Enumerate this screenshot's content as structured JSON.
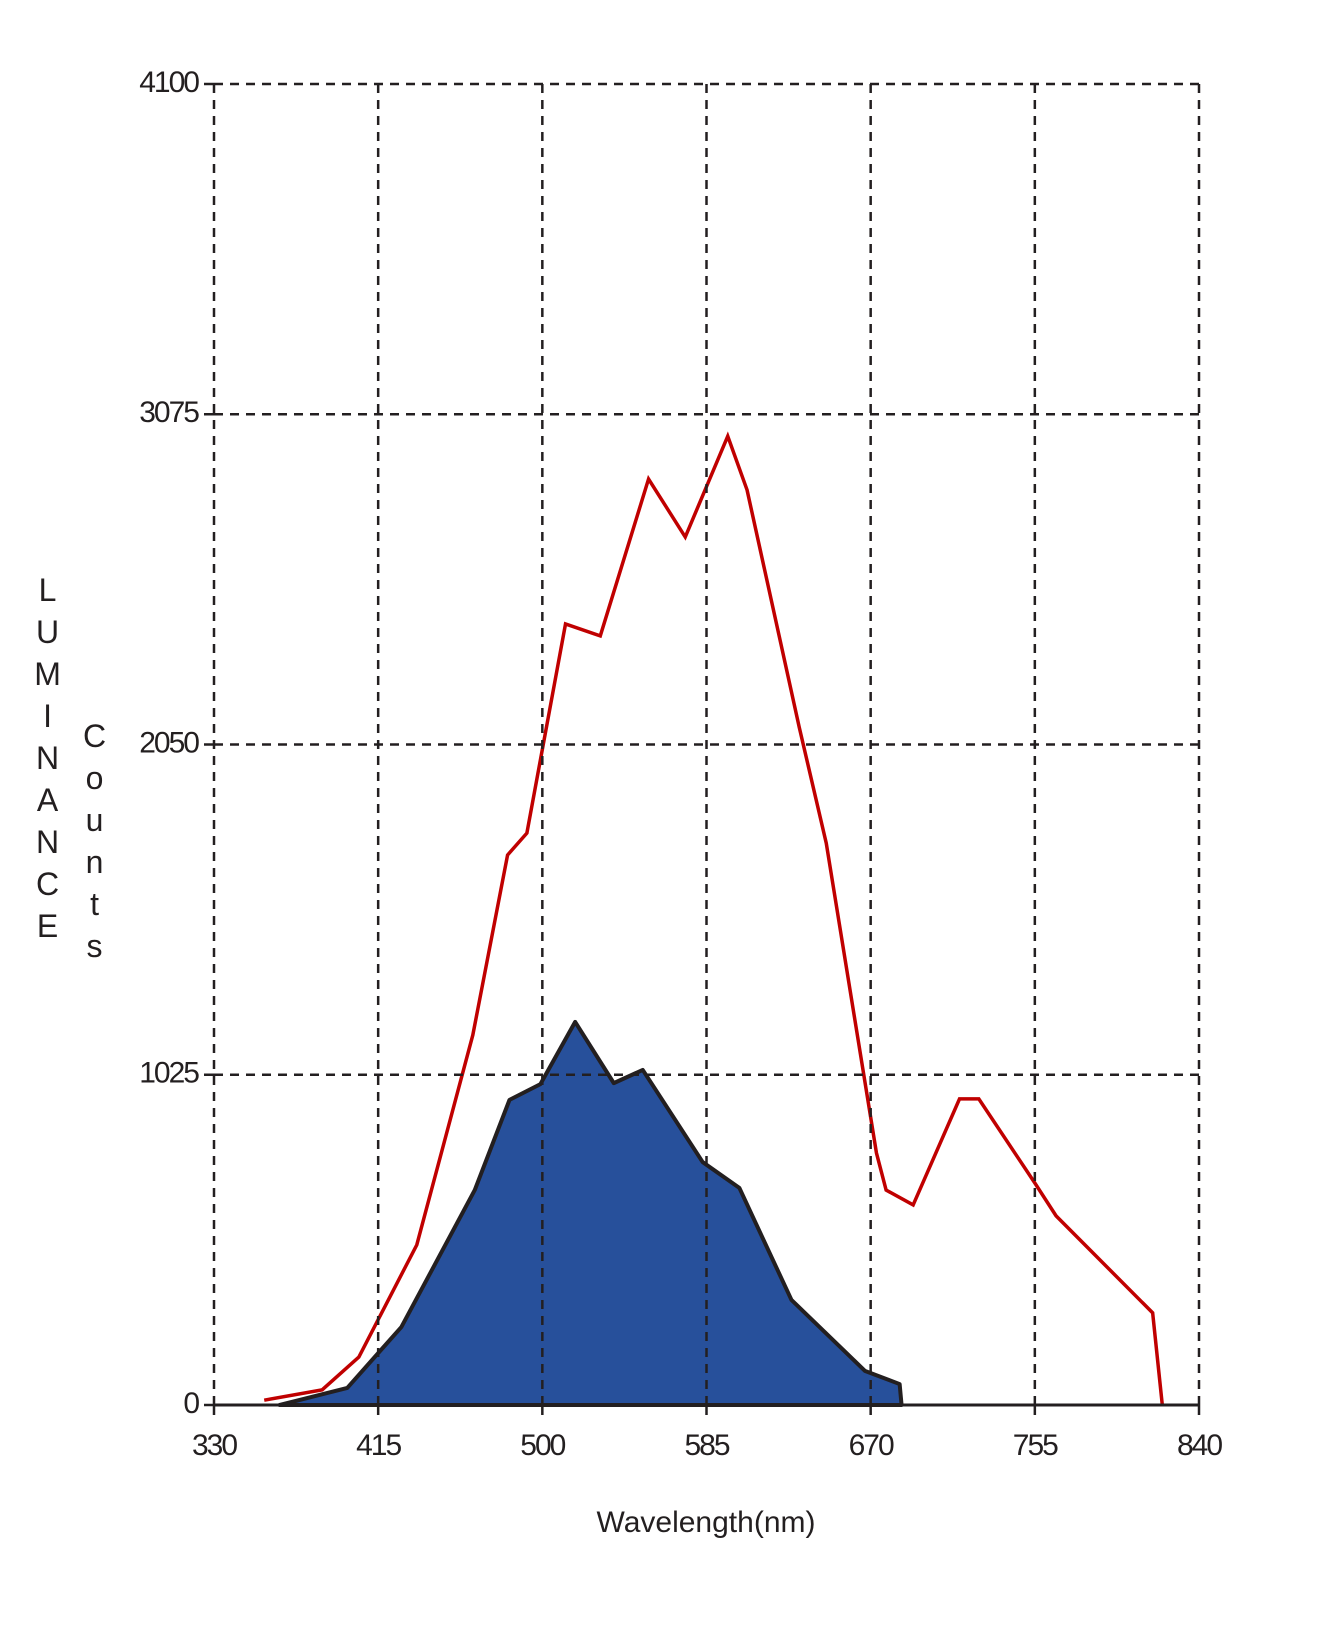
{
  "chart_data": {
    "type": "line_area",
    "xlabel": "Wavelength(nm)",
    "ylabel": [
      "LUMINANCE",
      "Counts"
    ],
    "xlim": [
      330,
      840
    ],
    "xticks": [
      330,
      415,
      500,
      585,
      670,
      755,
      840
    ],
    "ylim": [
      0,
      4100
    ],
    "yticks": [
      0,
      1025,
      2050,
      3075,
      4100
    ],
    "grid": true,
    "series": [
      {
        "kind": "line",
        "color": "#c00000",
        "x": [
          356,
          386,
          405,
          435,
          464,
          482,
          492,
          512,
          530,
          555,
          574,
          596,
          606,
          633,
          647,
          673,
          678,
          692,
          716,
          726,
          755,
          766,
          816,
          821
        ],
        "values": [
          15,
          47,
          149,
          497,
          1148,
          1707,
          1775,
          2424,
          2387,
          2874,
          2694,
          3007,
          2840,
          2104,
          1744,
          782,
          667,
          621,
          950,
          950,
          689,
          587,
          286,
          0
        ]
      },
      {
        "kind": "area",
        "color": "#27509b",
        "x": [
          364,
          399,
          427,
          465,
          483,
          499,
          517,
          537,
          552,
          583,
          602,
          629,
          667,
          685,
          686
        ],
        "values": [
          0,
          53,
          242,
          667,
          947,
          996,
          1189,
          999,
          1040,
          754,
          674,
          326,
          106,
          65,
          0
        ]
      }
    ]
  }
}
